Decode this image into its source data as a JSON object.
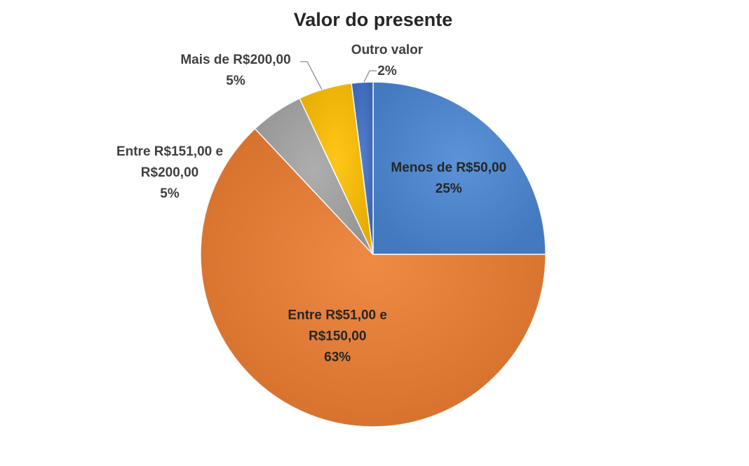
{
  "chart_data": {
    "type": "pie",
    "title": "Valor do presente",
    "slices": [
      {
        "name": "Menos de R$50,00",
        "label_lines": [
          "Menos de R$50,00"
        ],
        "value": 25,
        "value_label": "25%",
        "color": "#4a87d4"
      },
      {
        "name": "Entre R$51,00 e R$150,00",
        "label_lines": [
          "Entre R$51,00 e",
          "R$150,00"
        ],
        "value": 63,
        "value_label": "63%",
        "color": "#ed7d31"
      },
      {
        "name": "Entre R$151,00 e R$200,00",
        "label_lines": [
          "Entre R$151,00 e",
          "R$200,00"
        ],
        "value": 5,
        "value_label": "5%",
        "color": "#a5a5a5"
      },
      {
        "name": "Mais de R$200,00",
        "label_lines": [
          "Mais de R$200,00"
        ],
        "value": 5,
        "value_label": "5%",
        "color": "#ffc000"
      },
      {
        "name": "Outro valor",
        "label_lines": [
          "Outro valor"
        ],
        "value": 2,
        "value_label": "2%",
        "color": "#3e6fc7"
      }
    ],
    "legend": "none",
    "data_labels": "category name and percentage"
  }
}
